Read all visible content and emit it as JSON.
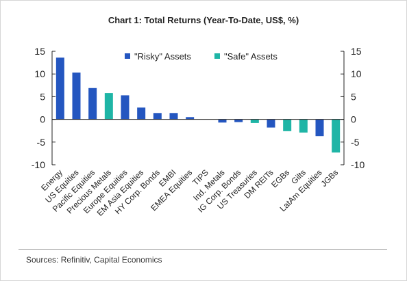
{
  "title": "Chart 1: Total Returns (Year-To-Date, US$, %)",
  "source": "Sources: Refinitiv, Capital Economics",
  "colors": {
    "risky": "#2456c0",
    "safe": "#1fb5a6",
    "axis": "#222222"
  },
  "chart_data": {
    "type": "bar",
    "title": "Chart 1: Total Returns (Year-To-Date, US$, %)",
    "xlabel": "",
    "ylabel": "",
    "ylim": [
      -10,
      15
    ],
    "yticks": [
      -10,
      -5,
      0,
      5,
      10,
      15
    ],
    "ytick_labels": [
      "-10",
      "-5",
      "0",
      "5",
      "10",
      "15"
    ],
    "grid": false,
    "legend_position": "top-center",
    "legend": [
      {
        "name": "\"Risky\" Assets",
        "group": "risky"
      },
      {
        "name": "\"Safe\" Assets",
        "group": "safe"
      }
    ],
    "categories": [
      "Energy",
      "US Equities",
      "Pacific Equities",
      "Precious Metals",
      "Europe Equities",
      "EM Asia Equities",
      "HY Corp. Bonds",
      "EMBI",
      "EMEA Equities",
      "TIPS",
      "Ind. Metals",
      "IG Corp. Bonds",
      "US Treasuries",
      "DM REITs",
      "EGBs",
      "Gilts",
      "LatAm Equities",
      "JGBs"
    ],
    "values": [
      13.6,
      10.3,
      6.9,
      5.8,
      5.3,
      2.6,
      1.4,
      1.4,
      0.5,
      0.0,
      -0.7,
      -0.6,
      -0.8,
      -1.8,
      -2.6,
      -2.9,
      -3.7,
      -7.3
    ],
    "groups": [
      "risky",
      "risky",
      "risky",
      "safe",
      "risky",
      "risky",
      "risky",
      "risky",
      "risky",
      "safe",
      "risky",
      "risky",
      "safe",
      "risky",
      "safe",
      "safe",
      "risky",
      "safe"
    ]
  }
}
